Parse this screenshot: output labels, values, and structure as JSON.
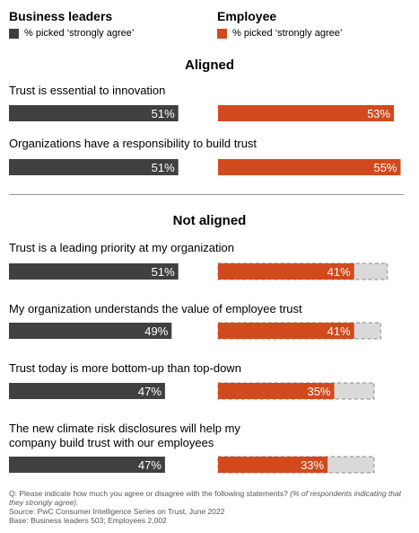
{
  "colors": {
    "leaders": "#404040",
    "employees": "#d04a1e",
    "remainder": "#d9d9d9"
  },
  "legend": {
    "leaders": {
      "title": "Business leaders",
      "key": "% picked ‘strongly agree’"
    },
    "employees": {
      "title": "Employee",
      "key": "% picked ‘strongly agree’"
    }
  },
  "sections": {
    "aligned": "Aligned",
    "not_aligned": "Not aligned"
  },
  "chart_data": {
    "type": "bar",
    "title": "",
    "unit": "%",
    "categories": [
      "Trust is essential to innovation",
      "Organizations have a responsibility to build trust",
      "Trust is a leading priority at my organization",
      "My organization understands the value of employee trust",
      "Trust today is more bottom-up than top-down",
      "The new climate risk disclosures will help my company build trust with our employees"
    ],
    "category_lines": [
      [
        "Trust is essential to innovation"
      ],
      [
        "Organizations have a responsibility to build trust"
      ],
      [
        "Trust is a leading priority at my organization"
      ],
      [
        "My organization understands the value of employee trust"
      ],
      [
        "Trust today is more bottom-up than top-down"
      ],
      [
        "The new climate risk disclosures will help my",
        "company build trust with our employees"
      ]
    ],
    "groups": [
      "Aligned",
      "Aligned",
      "Not aligned",
      "Not aligned",
      "Not aligned",
      "Not aligned"
    ],
    "series": [
      {
        "name": "Business leaders",
        "values": [
          51,
          51,
          51,
          49,
          47,
          47
        ],
        "labels": [
          "51%",
          "51%",
          "51%",
          "49%",
          "47%",
          "47%"
        ]
      },
      {
        "name": "Employee",
        "values": [
          53,
          55,
          41,
          41,
          35,
          33
        ],
        "labels": [
          "53%",
          "55%",
          "41%",
          "41%",
          "35%",
          "33%"
        ],
        "gap_to_leaders": [
          false,
          false,
          true,
          true,
          true,
          true
        ]
      }
    ],
    "legend_position": "top",
    "grid": false
  },
  "footnote": {
    "question": "Q: Please indicate how much you agree or disagree with the following statements?",
    "question_note": "(% of respondents indicating that they strongly agree).",
    "source": "Source: PwC Consumer Intelligence Series on Trust, June 2022",
    "base": "Base: Business leaders 503; Employees 2,002"
  }
}
